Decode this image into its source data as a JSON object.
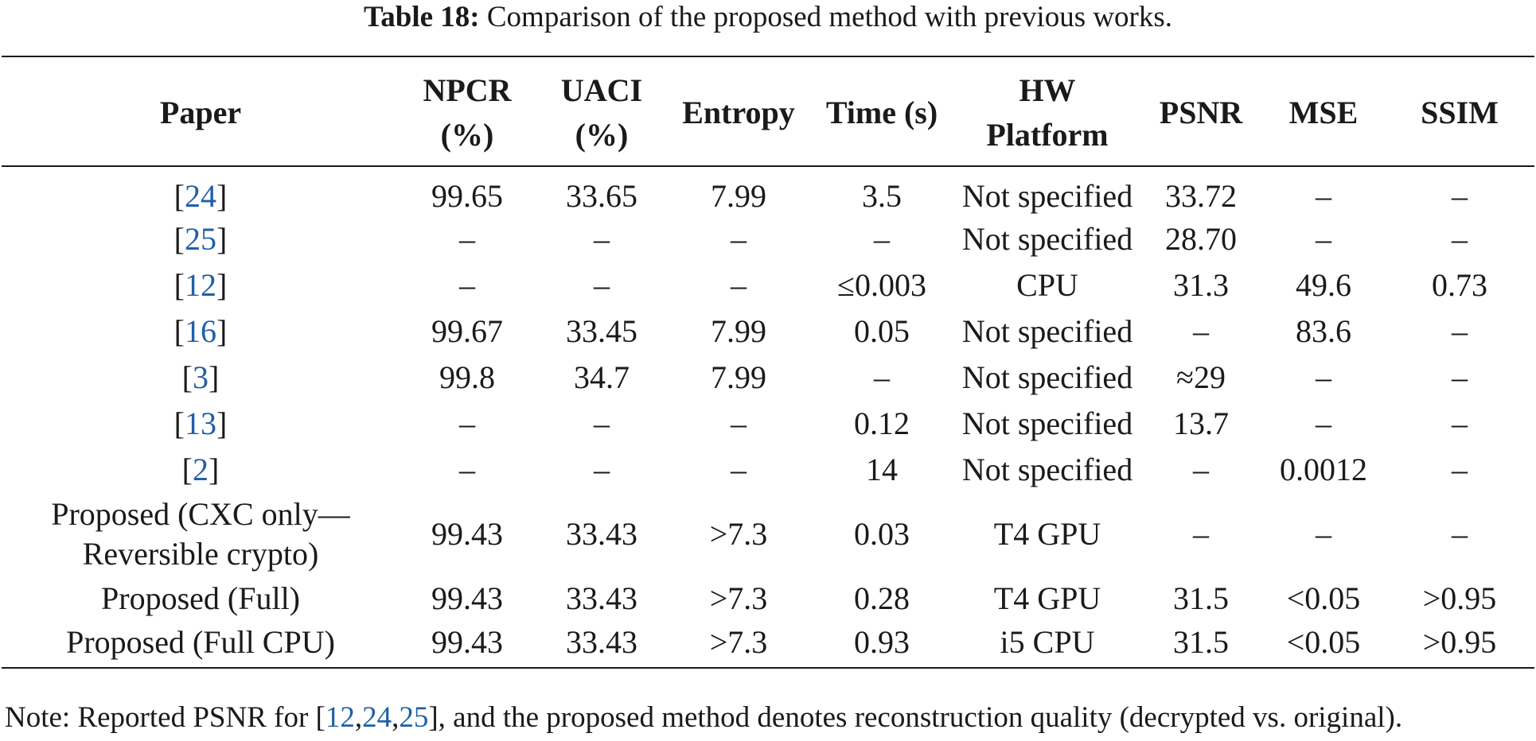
{
  "caption": {
    "label": "Table 18:",
    "text": " Comparison of the proposed method with previous works."
  },
  "table": {
    "headers": {
      "paper": "Paper",
      "npcr_line1": "NPCR",
      "npcr_line2": "(%)",
      "uaci_line1": "UACI",
      "uaci_line2": "(%)",
      "entropy": "Entropy",
      "time": "Time (s)",
      "hw_line1": "HW",
      "hw_line2": "Platform",
      "psnr": "PSNR",
      "mse": "MSE",
      "ssim": "SSIM"
    },
    "rows": [
      {
        "ref": "24",
        "npcr": "99.65",
        "uaci": "33.65",
        "entropy": "7.99",
        "time": "3.5",
        "hw": "Not specified",
        "psnr": "33.72",
        "mse": "–",
        "ssim": "–"
      },
      {
        "ref": "25",
        "npcr": "–",
        "uaci": "–",
        "entropy": "–",
        "time": "–",
        "hw": "Not specified",
        "psnr": "28.70",
        "mse": "–",
        "ssim": "–"
      },
      {
        "ref": "12",
        "npcr": "–",
        "uaci": "–",
        "entropy": "–",
        "time": "≤0.003",
        "hw": "CPU",
        "psnr": "31.3",
        "mse": "49.6",
        "ssim": "0.73"
      },
      {
        "ref": "16",
        "npcr": "99.67",
        "uaci": "33.45",
        "entropy": "7.99",
        "time": "0.05",
        "hw": "Not specified",
        "psnr": "–",
        "mse": "83.6",
        "ssim": "–"
      },
      {
        "ref": "3",
        "npcr": "99.8",
        "uaci": "34.7",
        "entropy": "7.99",
        "time": "–",
        "hw": "Not specified",
        "psnr": "≈29",
        "mse": "–",
        "ssim": "–"
      },
      {
        "ref": "13",
        "npcr": "–",
        "uaci": "–",
        "entropy": "–",
        "time": "0.12",
        "hw": "Not specified",
        "psnr": "13.7",
        "mse": "–",
        "ssim": "–"
      },
      {
        "ref": "2",
        "npcr": "–",
        "uaci": "–",
        "entropy": "–",
        "time": "14",
        "hw": "Not specified",
        "psnr": "–",
        "mse": "0.0012",
        "ssim": "–"
      },
      {
        "paper_line1": "Proposed (CXC only—",
        "paper_line2": "Reversible crypto)",
        "npcr": "99.43",
        "uaci": "33.43",
        "entropy": ">7.3",
        "time": "0.03",
        "hw": "T4 GPU",
        "psnr": "–",
        "mse": "–",
        "ssim": "–"
      },
      {
        "paper": "Proposed (Full)",
        "npcr": "99.43",
        "uaci": "33.43",
        "entropy": ">7.3",
        "time": "0.28",
        "hw": "T4 GPU",
        "psnr": "31.5",
        "mse": "<0.05",
        "ssim": ">0.95"
      },
      {
        "paper": "Proposed (Full CPU)",
        "npcr": "99.43",
        "uaci": "33.43",
        "entropy": ">7.3",
        "time": "0.93",
        "hw": "i5 CPU",
        "psnr": "31.5",
        "mse": "<0.05",
        "ssim": ">0.95"
      }
    ]
  },
  "note": {
    "prefix": "Note: Reported PSNR for [",
    "ref1": "12",
    "sep1": ",",
    "ref2": "24",
    "sep2": ",",
    "ref3": "25",
    "suffix": "], and the proposed method denotes reconstruction quality (decrypted vs. original)."
  },
  "colors": {
    "text": "#1a1a1a",
    "reference_link": "#1f5fa8",
    "rule": "#1a1a1a"
  }
}
